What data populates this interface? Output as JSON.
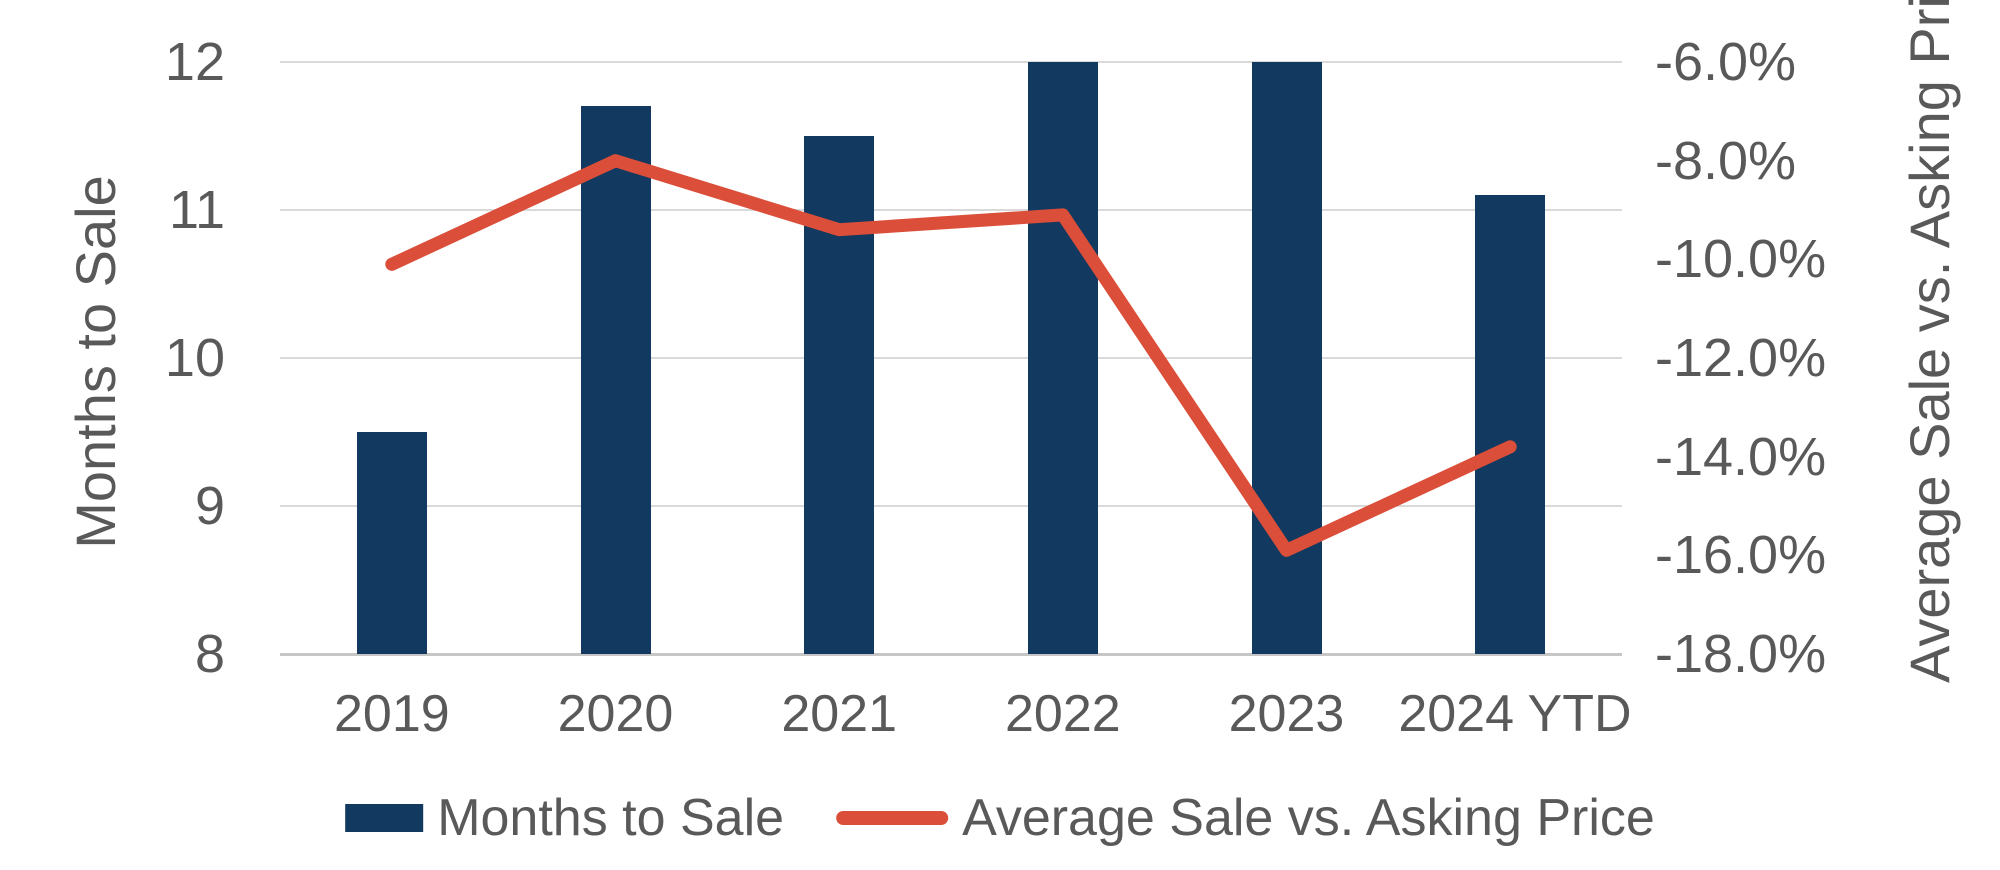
{
  "chart_data": {
    "type": "bar",
    "subtype": "combo-bar-line-dual-axis",
    "title": "",
    "categories": [
      "2019",
      "2020",
      "2021",
      "2022",
      "2023",
      "2024 YTD"
    ],
    "series": [
      {
        "name": "Months to Sale",
        "type": "bar",
        "axis": "left",
        "color": "#12395F",
        "values": [
          9.5,
          11.7,
          11.5,
          12.0,
          12.0,
          11.1
        ]
      },
      {
        "name": "Average Sale vs. Asking Price",
        "type": "line",
        "axis": "right",
        "color": "#DB4E39",
        "values_percent": [
          -10.1,
          -8.0,
          -9.4,
          -9.1,
          -15.9,
          -13.8
        ]
      }
    ],
    "left_axis": {
      "title": "Months to Sale",
      "min": 8,
      "max": 12,
      "tick_labels": [
        "12",
        "11",
        "10",
        "9",
        "8"
      ],
      "tick_values": [
        12,
        11,
        10,
        9,
        8
      ]
    },
    "right_axis": {
      "title": "Average Sale vs. Asking Price",
      "min": -18,
      "max": -6,
      "tick_labels": [
        "-6.0%",
        "-8.0%",
        "-10.0%",
        "-12.0%",
        "-14.0%",
        "-16.0%",
        "-18.0%"
      ],
      "tick_values": [
        -6,
        -8,
        -10,
        -12,
        -14,
        -16,
        -18
      ]
    },
    "legend": [
      {
        "label": "Months to Sale",
        "swatch": "bar",
        "color": "#12395F"
      },
      {
        "label": "Average Sale vs. Asking Price",
        "swatch": "line",
        "color": "#DB4E39"
      }
    ],
    "grid": true,
    "legend_position": "bottom",
    "background": "#FFFFFF"
  },
  "colors": {
    "bar_navy": "#12395F",
    "line_red": "#DB4E39",
    "text_gray": "#595959",
    "gridline_gray": "#D9D9D9",
    "axisline_gray": "#C6C6C6"
  }
}
